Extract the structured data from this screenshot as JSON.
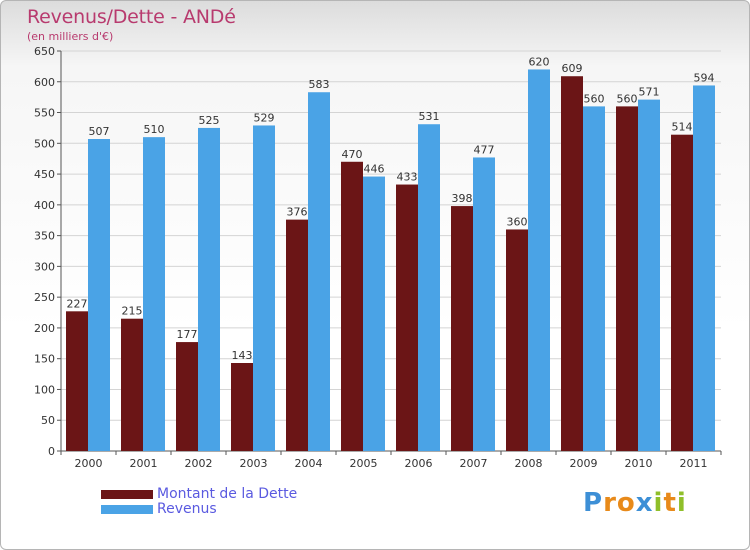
{
  "header": {
    "title": "Revenus/Dette - ANDé",
    "subtitle": "(en milliers d'€)"
  },
  "chart_data": {
    "type": "bar",
    "categories": [
      "2000",
      "2001",
      "2002",
      "2003",
      "2004",
      "2005",
      "2006",
      "2007",
      "2008",
      "2009",
      "2010",
      "2011"
    ],
    "series": [
      {
        "name": "Montant de la Dette",
        "values": [
          227,
          215,
          177,
          143,
          376,
          470,
          433,
          398,
          360,
          609,
          560,
          514
        ],
        "color": "#6b1516"
      },
      {
        "name": "Revenus",
        "values": [
          507,
          510,
          525,
          529,
          583,
          446,
          531,
          477,
          620,
          560,
          571,
          594
        ],
        "color": "#4aa3e6"
      }
    ],
    "ylim": [
      0,
      650
    ],
    "yticks": [
      0,
      50,
      100,
      150,
      200,
      250,
      300,
      350,
      400,
      450,
      500,
      550,
      600,
      650
    ],
    "grid": true,
    "legend_position": "bottom-left"
  },
  "legend": {
    "items": [
      "Montant de la Dette",
      "Revenus"
    ]
  },
  "logo": {
    "letters": [
      "P",
      "r",
      "o",
      "x",
      "i",
      "t",
      "i"
    ],
    "colors": [
      "#3d8fd6",
      "#e88a1a",
      "#e88a1a",
      "#3d8fd6",
      "#8fbf2a",
      "#e88a1a",
      "#8fbf2a"
    ]
  }
}
